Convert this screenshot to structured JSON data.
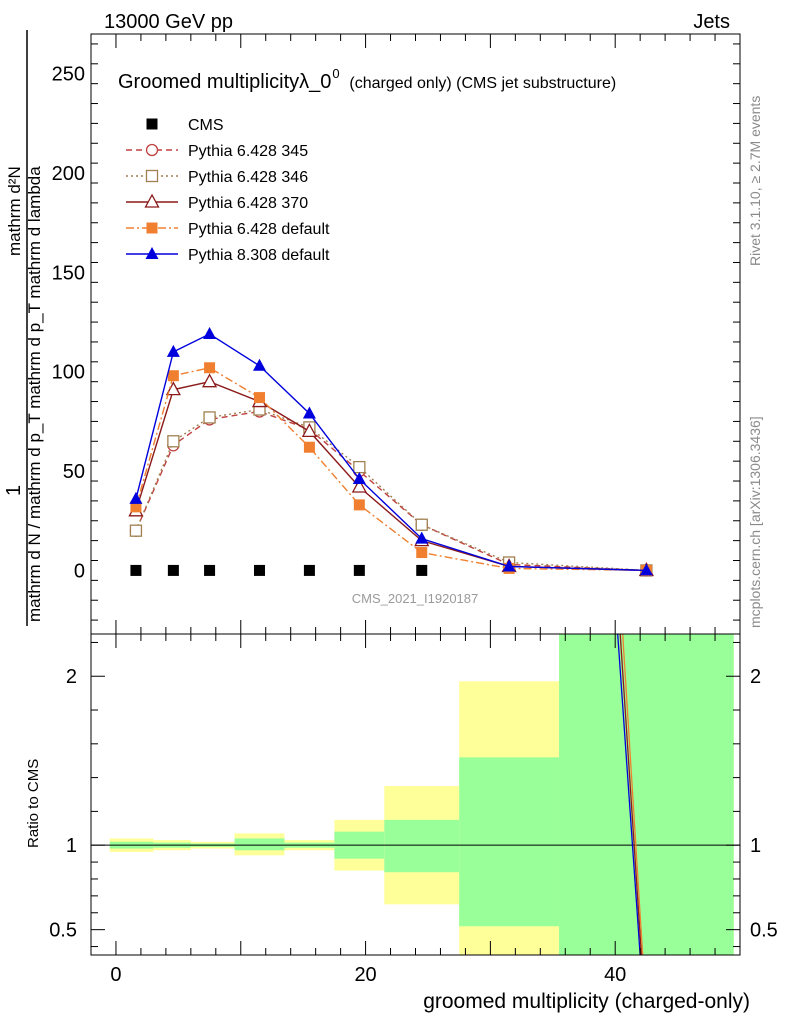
{
  "header": {
    "left": "13000 GeV pp",
    "right": "Jets"
  },
  "side": {
    "top": "Rivet 3.1.10, ≥ 2.7M events",
    "bottom": "mcplots.cern.ch [arXiv:1306.3436]"
  },
  "chart_data": [
    {
      "type": "line",
      "title": "Groomed multiplicityλ_0",
      "title_sup": "0",
      "title_suffix": "(charged only) (CMS jet substructure)",
      "ylabel_top": "1",
      "ylabel_num": "mathrm d²N",
      "ylabel_den": "mathrm d N / mathrm d p_T mathrm d p_T mathrm d lambda",
      "watermark": "CMS_2021_I1920187",
      "xlim": [
        -2,
        50
      ],
      "ylim": [
        -32,
        270
      ],
      "yticks": [
        0,
        50,
        100,
        150,
        200,
        250
      ],
      "x": [
        1.6,
        4.6,
        7.5,
        11.5,
        15.5,
        19.5,
        24.5,
        31.5,
        42.5
      ],
      "series": [
        {
          "name": "CMS",
          "color": "#000000",
          "marker": "square",
          "dash": "none",
          "line": false,
          "values": [
            0,
            0,
            0,
            0,
            0,
            0,
            0,
            0,
            0
          ]
        },
        {
          "name": "Pythia 6.428 345",
          "color": "#c04040",
          "marker": "circle-open",
          "dash": "6,4",
          "line": true,
          "values": [
            20,
            63,
            76,
            80,
            71,
            50,
            23,
            3,
            0
          ]
        },
        {
          "name": "Pythia 6.428 346",
          "color": "#a08050",
          "marker": "square-open",
          "dash": "2,3",
          "line": true,
          "values": [
            20,
            65,
            77,
            81,
            72,
            52,
            23,
            4,
            0
          ]
        },
        {
          "name": "Pythia 6.428 370",
          "color": "#8b1a1a",
          "marker": "triangle-open",
          "dash": "none",
          "line": true,
          "values": [
            30,
            91,
            95,
            85,
            70,
            42,
            15,
            2,
            0
          ]
        },
        {
          "name": "Pythia 6.428 default",
          "color": "#f08030",
          "marker": "square",
          "dash": "8,3,2,3",
          "line": true,
          "values": [
            32,
            98,
            102,
            87,
            62,
            33,
            9,
            1,
            0
          ]
        },
        {
          "name": "Pythia 8.308 default",
          "color": "#0000dd",
          "marker": "triangle",
          "dash": "none",
          "line": true,
          "values": [
            36,
            110,
            119,
            103,
            79,
            46,
            16,
            2,
            0
          ]
        }
      ]
    },
    {
      "type": "line",
      "ylabel": "Ratio to CMS",
      "xlabel": "groomed multiplicity (charged-only)",
      "xlim": [
        -2,
        50
      ],
      "ylim": [
        0.35,
        2.25
      ],
      "yticks": [
        0.5,
        1,
        2
      ],
      "ytick_labels": [
        "0.5",
        "1",
        "2"
      ],
      "xticks": [
        0,
        20,
        40
      ],
      "bands": [
        {
          "x0": -0.5,
          "x1": 3.0,
          "y_lo": 0.96,
          "y_hi": 1.04,
          "g_lo": 0.98,
          "g_hi": 1.02
        },
        {
          "x0": 3.0,
          "x1": 6.0,
          "y_lo": 0.97,
          "y_hi": 1.03,
          "g_lo": 0.985,
          "g_hi": 1.015
        },
        {
          "x0": 6.0,
          "x1": 9.5,
          "y_lo": 0.98,
          "y_hi": 1.02,
          "g_lo": 0.99,
          "g_hi": 1.01
        },
        {
          "x0": 9.5,
          "x1": 13.5,
          "y_lo": 0.94,
          "y_hi": 1.07,
          "g_lo": 0.97,
          "g_hi": 1.04
        },
        {
          "x0": 13.5,
          "x1": 17.5,
          "y_lo": 0.97,
          "y_hi": 1.03,
          "g_lo": 0.985,
          "g_hi": 1.015
        },
        {
          "x0": 17.5,
          "x1": 21.5,
          "y_lo": 0.85,
          "y_hi": 1.15,
          "g_lo": 0.92,
          "g_hi": 1.08
        },
        {
          "x0": 21.5,
          "x1": 27.5,
          "y_lo": 0.65,
          "y_hi": 1.35,
          "g_lo": 0.84,
          "g_hi": 1.15
        },
        {
          "x0": 27.5,
          "x1": 35.5,
          "y_lo": 0.35,
          "y_hi": 1.97,
          "g_lo": 0.52,
          "g_hi": 1.52
        },
        {
          "x0": 35.5,
          "x1": 49.5,
          "y_lo": 0.35,
          "y_hi": 2.25,
          "g_lo": 0.35,
          "g_hi": 2.25
        }
      ],
      "ratio_lines": [
        {
          "color": "#0000dd",
          "x0": 40.2,
          "y0": 2.25,
          "x1": 42.0,
          "y1": 0.35
        },
        {
          "color": "#8b1a1a",
          "x0": 40.4,
          "y0": 2.25,
          "x1": 42.1,
          "y1": 0.35
        },
        {
          "color": "#f08030",
          "x0": 40.6,
          "y0": 2.25,
          "x1": 42.2,
          "y1": 0.35
        }
      ]
    }
  ]
}
